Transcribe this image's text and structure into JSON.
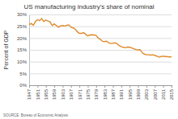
{
  "chart_data": {
    "type": "line",
    "title": "US manufacturing industry's share of nominal",
    "y_label": "Percent of GDP",
    "source": "SOURCE: Bureau of Economic Analysis",
    "color": "#e08a2c",
    "grid": true,
    "x": [
      1947,
      1948,
      1949,
      1950,
      1951,
      1952,
      1953,
      1954,
      1955,
      1956,
      1957,
      1958,
      1959,
      1960,
      1961,
      1962,
      1963,
      1964,
      1965,
      1966,
      1967,
      1968,
      1969,
      1970,
      1971,
      1972,
      1973,
      1974,
      1975,
      1976,
      1977,
      1978,
      1979,
      1980,
      1981,
      1982,
      1983,
      1984,
      1985,
      1986,
      1987,
      1988,
      1989,
      1990,
      1991,
      1992,
      1993,
      1994,
      1995,
      1996,
      1997,
      1998,
      1999,
      2000,
      2001,
      2002,
      2003,
      2004,
      2005,
      2006,
      2007,
      2008,
      2009,
      2010,
      2011,
      2012,
      2013,
      2014,
      2015
    ],
    "values": [
      25.6,
      26.2,
      25.4,
      27.0,
      27.8,
      27.4,
      28.3,
      27.0,
      27.6,
      27.2,
      26.9,
      25.3,
      26.0,
      25.3,
      24.6,
      25.2,
      25.3,
      25.1,
      25.4,
      25.6,
      24.6,
      24.3,
      23.8,
      22.7,
      22.0,
      22.0,
      22.3,
      21.6,
      20.9,
      21.3,
      21.4,
      21.3,
      21.1,
      20.0,
      19.5,
      18.6,
      18.5,
      18.7,
      18.0,
      17.7,
      17.8,
      18.0,
      17.6,
      16.8,
      16.3,
      16.1,
      15.9,
      16.2,
      16.1,
      15.8,
      15.5,
      15.1,
      14.9,
      15.1,
      13.8,
      13.2,
      12.9,
      12.9,
      12.8,
      12.9,
      12.7,
      12.3,
      11.9,
      12.2,
      12.3,
      12.2,
      12.1,
      12.0,
      12.0
    ],
    "xlim": [
      1947,
      2015
    ],
    "xticks": [
      1947,
      1951,
      1955,
      1959,
      1963,
      1967,
      1971,
      1975,
      1979,
      1983,
      1987,
      1991,
      1995,
      1999,
      2003,
      2007,
      2011,
      2015
    ],
    "ylim": [
      0,
      30
    ],
    "yticks": [
      {
        "value": 0,
        "label": "0%"
      },
      {
        "value": 5,
        "label": "5%"
      },
      {
        "value": 10,
        "label": "10%"
      },
      {
        "value": 15,
        "label": "15%"
      },
      {
        "value": 20,
        "label": "20%"
      },
      {
        "value": 25,
        "label": "25%"
      },
      {
        "value": 30,
        "label": "30%"
      }
    ]
  }
}
